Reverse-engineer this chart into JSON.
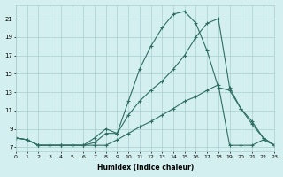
{
  "xlabel": "Humidex (Indice chaleur)",
  "bg_color": "#d4efef",
  "grid_color": "#a8cece",
  "line_color": "#2d6e63",
  "xlim": [
    0,
    23
  ],
  "ylim": [
    6.5,
    22.5
  ],
  "yticks": [
    7,
    9,
    11,
    13,
    15,
    17,
    19,
    21
  ],
  "xticks": [
    0,
    1,
    2,
    3,
    4,
    5,
    6,
    7,
    8,
    9,
    10,
    11,
    12,
    13,
    14,
    15,
    16,
    17,
    18,
    19,
    20,
    21,
    22,
    23
  ],
  "line1_x": [
    0,
    1,
    2,
    3,
    4,
    5,
    6,
    7,
    8,
    9,
    10,
    11,
    12,
    13,
    14,
    15,
    16,
    17,
    18,
    19,
    20,
    21,
    22,
    23
  ],
  "line1_y": [
    8.0,
    7.8,
    7.2,
    7.2,
    7.2,
    7.2,
    7.2,
    7.2,
    7.2,
    7.8,
    8.5,
    9.2,
    9.8,
    10.5,
    11.2,
    12.0,
    12.5,
    13.2,
    13.8,
    7.2,
    7.2,
    7.2,
    7.8,
    7.2
  ],
  "line2_x": [
    0,
    1,
    2,
    3,
    4,
    5,
    6,
    7,
    8,
    9,
    10,
    11,
    12,
    13,
    14,
    15,
    16,
    17,
    18,
    19,
    20,
    21,
    22,
    23
  ],
  "line2_y": [
    8.0,
    7.8,
    7.2,
    7.2,
    7.2,
    7.2,
    7.2,
    7.5,
    8.5,
    8.5,
    10.5,
    12.0,
    13.2,
    14.2,
    15.5,
    17.0,
    19.0,
    20.5,
    21.0,
    13.5,
    11.2,
    9.5,
    8.0,
    7.2
  ],
  "line3_x": [
    0,
    1,
    2,
    3,
    4,
    5,
    6,
    7,
    8,
    9,
    10,
    11,
    12,
    13,
    14,
    15,
    16,
    17,
    18,
    19,
    20,
    21,
    22,
    23
  ],
  "line3_y": [
    8.0,
    7.8,
    7.2,
    7.2,
    7.2,
    7.2,
    7.2,
    8.0,
    9.0,
    8.5,
    12.0,
    15.5,
    18.0,
    20.0,
    21.5,
    21.8,
    20.5,
    17.5,
    13.5,
    13.2,
    11.2,
    9.8,
    8.0,
    7.2
  ]
}
